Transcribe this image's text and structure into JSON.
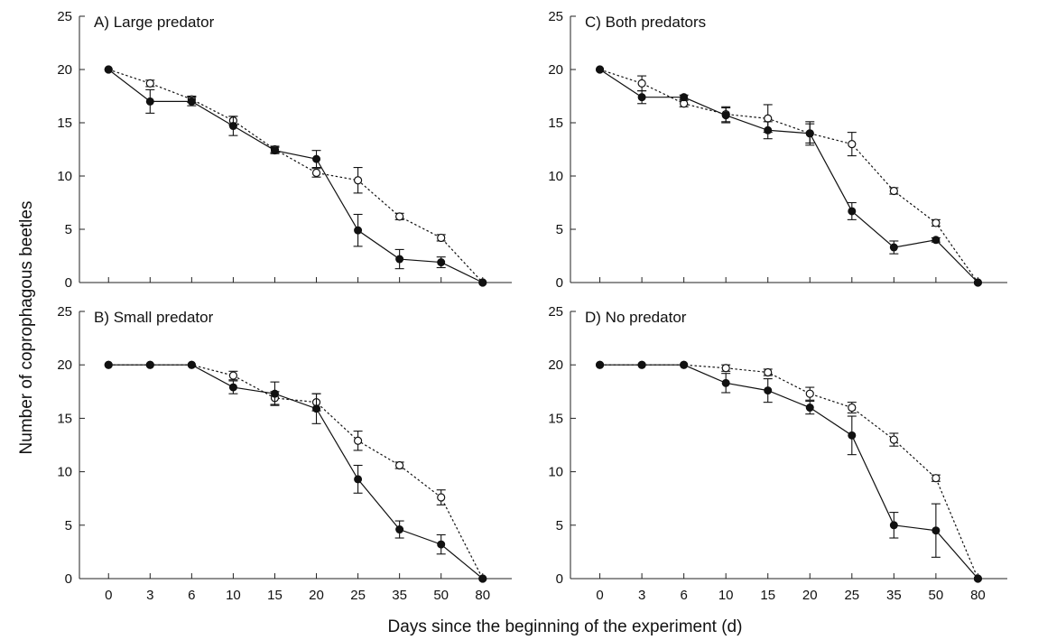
{
  "figure": {
    "xlabel": "Days since the beginning of the experiment (d)",
    "ylabel": "Number of coprophagous beetles"
  },
  "chart_data": [
    {
      "type": "line",
      "title": "A) Large predator",
      "x": [
        "0",
        "3",
        "6",
        "10",
        "15",
        "20",
        "25",
        "35",
        "50",
        "80"
      ],
      "ylim": [
        0,
        25
      ],
      "yticks": [
        0,
        5,
        10,
        15,
        20,
        25
      ],
      "series": [
        {
          "marker": "filled",
          "style": "solid",
          "values": [
            20,
            17,
            17,
            14.7,
            12.4,
            11.6,
            4.9,
            2.2,
            1.9,
            0
          ],
          "errors": [
            0,
            1.1,
            0.4,
            0.9,
            0.3,
            0.8,
            1.5,
            0.9,
            0.5,
            0
          ]
        },
        {
          "marker": "open",
          "style": "dotted",
          "values": [
            20,
            18.7,
            17.2,
            15.2,
            12.5,
            10.3,
            9.6,
            6.2,
            4.2,
            0
          ],
          "errors": [
            0,
            0.3,
            0.3,
            0.4,
            0.3,
            0.4,
            1.2,
            0.3,
            0.3,
            0
          ]
        }
      ]
    },
    {
      "type": "line",
      "title": "B) Small predator",
      "x": [
        "0",
        "3",
        "6",
        "10",
        "15",
        "20",
        "25",
        "35",
        "50",
        "80"
      ],
      "ylim": [
        0,
        25
      ],
      "yticks": [
        0,
        5,
        10,
        15,
        20,
        25
      ],
      "series": [
        {
          "marker": "filled",
          "style": "solid",
          "values": [
            20,
            20,
            20,
            17.9,
            17.3,
            15.9,
            9.3,
            4.6,
            3.2,
            0
          ],
          "errors": [
            0,
            0,
            0,
            0.6,
            1.1,
            1.4,
            1.3,
            0.8,
            0.9,
            0
          ]
        },
        {
          "marker": "open",
          "style": "dotted",
          "values": [
            20,
            20,
            20,
            19,
            16.9,
            16.5,
            12.9,
            10.6,
            7.6,
            0
          ],
          "errors": [
            0,
            0,
            0,
            0.4,
            0.6,
            0.8,
            0.9,
            0.3,
            0.7,
            0
          ]
        }
      ]
    },
    {
      "type": "line",
      "title": "C) Both predators",
      "x": [
        "0",
        "3",
        "6",
        "10",
        "15",
        "20",
        "25",
        "35",
        "50",
        "80"
      ],
      "ylim": [
        0,
        25
      ],
      "yticks": [
        0,
        5,
        10,
        15,
        20,
        25
      ],
      "series": [
        {
          "marker": "filled",
          "style": "solid",
          "values": [
            20,
            17.4,
            17.4,
            15.7,
            14.3,
            14,
            6.7,
            3.3,
            4,
            0
          ],
          "errors": [
            0,
            0.6,
            0.2,
            0.7,
            0.8,
            1.1,
            0.8,
            0.6,
            0.2,
            0
          ]
        },
        {
          "marker": "open",
          "style": "dotted",
          "values": [
            20,
            18.7,
            16.8,
            15.8,
            15.4,
            14,
            13,
            8.6,
            5.6,
            0
          ],
          "errors": [
            0,
            0.7,
            0.3,
            0.7,
            1.3,
            0.9,
            1.1,
            0.3,
            0.3,
            0
          ]
        }
      ]
    },
    {
      "type": "line",
      "title": "D) No predator",
      "x": [
        "0",
        "3",
        "6",
        "10",
        "15",
        "20",
        "25",
        "35",
        "50",
        "80"
      ],
      "ylim": [
        0,
        25
      ],
      "yticks": [
        0,
        5,
        10,
        15,
        20,
        25
      ],
      "series": [
        {
          "marker": "filled",
          "style": "solid",
          "values": [
            20,
            20,
            20,
            18.3,
            17.6,
            16,
            13.4,
            5,
            4.5,
            0
          ],
          "errors": [
            0,
            0,
            0,
            0.9,
            1.1,
            0.6,
            1.8,
            1.2,
            2.5,
            0
          ]
        },
        {
          "marker": "open",
          "style": "dotted",
          "values": [
            20,
            20,
            20,
            19.7,
            19.3,
            17.3,
            16,
            13,
            9.4,
            0
          ],
          "errors": [
            0,
            0,
            0,
            0.3,
            0.3,
            0.6,
            0.5,
            0.6,
            0.3,
            0
          ]
        }
      ]
    }
  ]
}
